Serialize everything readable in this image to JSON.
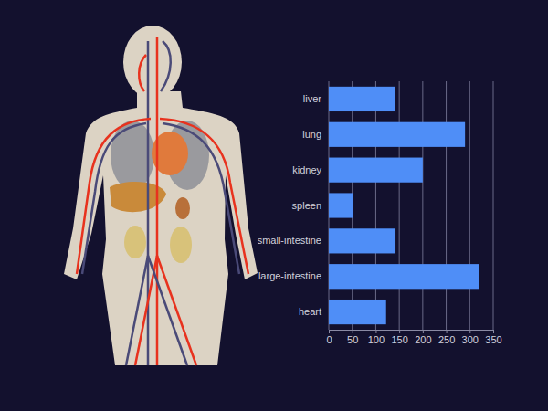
{
  "chart_data": {
    "type": "bar",
    "orientation": "horizontal",
    "categories": [
      "liver",
      "lung",
      "kidney",
      "spleen",
      "small-intestine",
      "large-intestine",
      "heart"
    ],
    "values": [
      140,
      290,
      200,
      52,
      142,
      320,
      122
    ],
    "color": "#4f8ef7",
    "xlim": [
      0,
      350
    ],
    "xticks": [
      0,
      50,
      100,
      150,
      200,
      250,
      300,
      350
    ],
    "grid": true
  }
}
